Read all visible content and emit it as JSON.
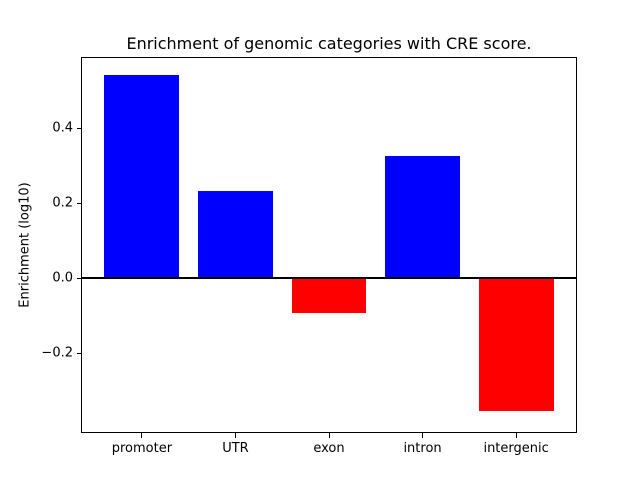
{
  "figure": {
    "background": "#ffffff",
    "axis_color": "#000000",
    "text_color": "#000000"
  },
  "chart_data": {
    "type": "bar",
    "title": "Enrichment of genomic categories with CRE score.",
    "xlabel": "",
    "ylabel": "Enrichment (log10)",
    "categories": [
      "promoter",
      "UTR",
      "exon",
      "intron",
      "intergenic"
    ],
    "values": [
      0.543,
      0.232,
      -0.093,
      0.327,
      -0.355
    ],
    "bar_colors": [
      "#0000ff",
      "#0000ff",
      "#ff0000",
      "#0000ff",
      "#ff0000"
    ],
    "positive_color": "#0000ff",
    "negative_color": "#ff0000",
    "ylim": [
      -0.411,
      0.588
    ],
    "yticks": [
      0.4,
      0.2,
      0.0,
      -0.2
    ],
    "ytick_labels": [
      "0.4",
      "0.2",
      "0.0",
      "−0.2"
    ],
    "bar_width_fraction": 0.8,
    "x_margin_units": 0.64,
    "grid": false,
    "legend": "none",
    "zero_line": true
  }
}
